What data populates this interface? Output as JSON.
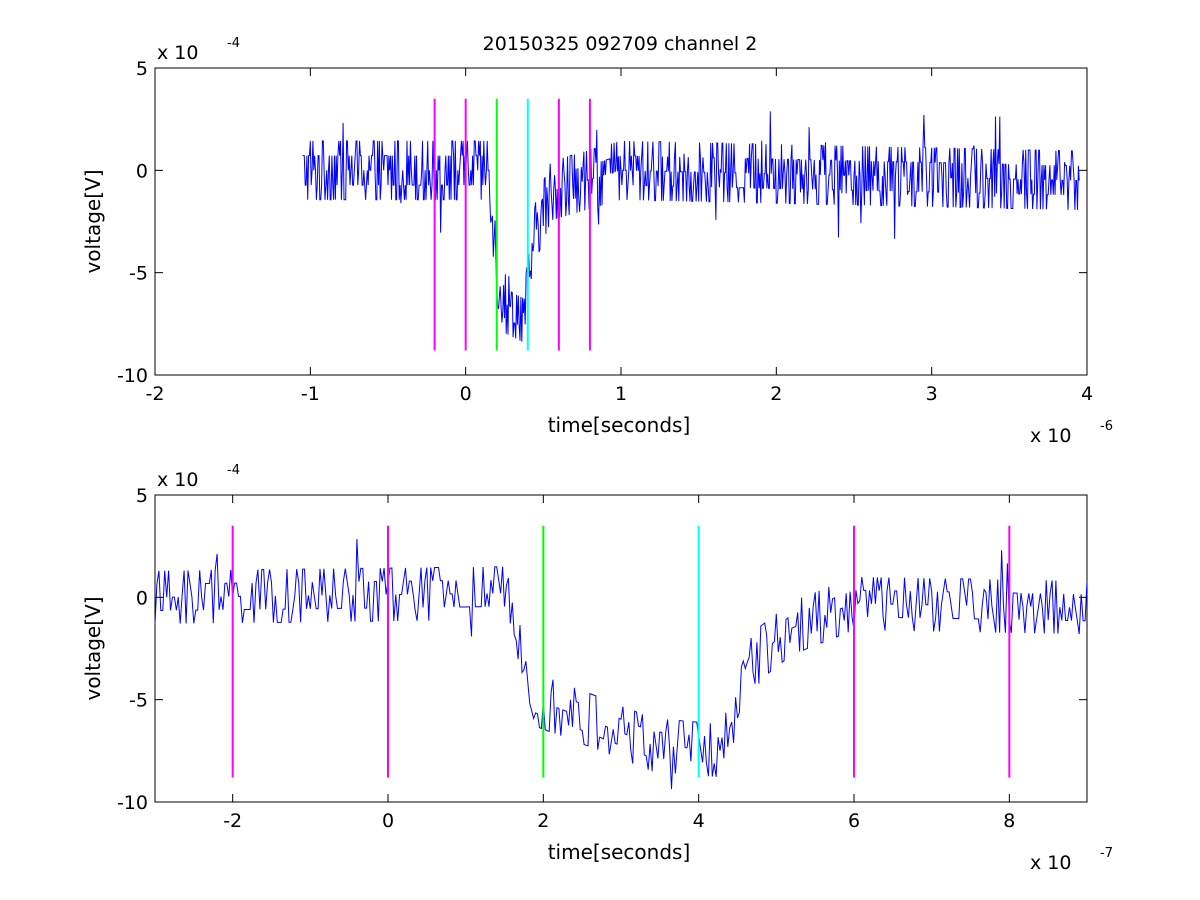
{
  "title": "20150325 092709 channel 2",
  "colors": {
    "signal": "#0000ff",
    "marker_magenta": "#ff00ff",
    "marker_green": "#00ff00",
    "marker_cyan": "#00ffff",
    "axes": "#000000",
    "background": "#ffffff"
  },
  "chart_data": [
    {
      "type": "line",
      "name": "full-view",
      "xlabel": "time[seconds]",
      "ylabel": "voltage[V]",
      "x_multiplier_base": "x 10",
      "x_multiplier_exp": "-6",
      "y_multiplier_base": "x 10",
      "y_multiplier_exp": "-4",
      "xlim": [
        -2,
        4
      ],
      "ylim": [
        -10,
        5
      ],
      "x_ticks": [
        -2,
        -1,
        0,
        1,
        2,
        3,
        4
      ],
      "x_tick_labels": [
        "-2",
        "-1",
        "0",
        "1",
        "2",
        "3",
        "4"
      ],
      "y_ticks": [
        5,
        0,
        -5,
        -10
      ],
      "y_tick_labels": [
        "5",
        "0",
        "-5",
        "-10"
      ],
      "grid": false,
      "signal_range": [
        -1.05,
        3.95
      ],
      "signal_segments": [
        {
          "x": -1.05,
          "y": 0.0,
          "noise": 1.0
        },
        {
          "x": 0.15,
          "y": 0.0,
          "noise": 1.0
        },
        {
          "x": 0.2,
          "y": -5.0,
          "noise": 1.0
        },
        {
          "x": 0.25,
          "y": -6.5,
          "noise": 1.0
        },
        {
          "x": 0.38,
          "y": -7.0,
          "noise": 1.0
        },
        {
          "x": 0.45,
          "y": -3.0,
          "noise": 1.0
        },
        {
          "x": 0.55,
          "y": -1.0,
          "noise": 1.0
        },
        {
          "x": 1.0,
          "y": 0.0,
          "noise": 1.0
        },
        {
          "x": 3.95,
          "y": -0.5,
          "noise": 1.0
        }
      ],
      "markers": [
        {
          "x": -0.2,
          "color": "magenta",
          "y_top": 3.5,
          "y_bottom": -8.8
        },
        {
          "x": 0.0,
          "color": "magenta",
          "y_top": 3.5,
          "y_bottom": -8.8
        },
        {
          "x": 0.2,
          "color": "green",
          "y_top": 3.5,
          "y_bottom": -8.8
        },
        {
          "x": 0.4,
          "color": "cyan",
          "y_top": 3.5,
          "y_bottom": -8.8
        },
        {
          "x": 0.6,
          "color": "magenta",
          "y_top": 3.5,
          "y_bottom": -8.8
        },
        {
          "x": 0.8,
          "color": "magenta",
          "y_top": 3.5,
          "y_bottom": -8.8
        }
      ]
    },
    {
      "type": "line",
      "name": "zoomed-view",
      "xlabel": "time[seconds]",
      "ylabel": "voltage[V]",
      "x_multiplier_base": "x 10",
      "x_multiplier_exp": "-7",
      "y_multiplier_base": "x 10",
      "y_multiplier_exp": "-4",
      "xlim": [
        -3,
        9
      ],
      "ylim": [
        -10,
        5
      ],
      "x_ticks": [
        -2,
        0,
        2,
        4,
        6,
        8
      ],
      "x_tick_labels": [
        "-2",
        "0",
        "2",
        "4",
        "6",
        "8"
      ],
      "y_ticks": [
        5,
        0,
        -5,
        -10
      ],
      "y_tick_labels": [
        "5",
        "0",
        "-5",
        "-10"
      ],
      "grid": false,
      "signal_range": [
        -3,
        9
      ],
      "signal_segments": [
        {
          "x": -3.0,
          "y": 0.0,
          "noise": 0.9
        },
        {
          "x": 1.5,
          "y": 0.2,
          "noise": 0.9
        },
        {
          "x": 1.7,
          "y": -2.0,
          "noise": 0.9
        },
        {
          "x": 1.9,
          "y": -5.0,
          "noise": 0.9
        },
        {
          "x": 2.6,
          "y": -6.0,
          "noise": 0.9
        },
        {
          "x": 3.4,
          "y": -7.2,
          "noise": 0.9
        },
        {
          "x": 4.3,
          "y": -7.5,
          "noise": 0.9
        },
        {
          "x": 4.7,
          "y": -3.0,
          "noise": 0.9
        },
        {
          "x": 5.2,
          "y": -1.5,
          "noise": 0.9
        },
        {
          "x": 6.0,
          "y": -0.3,
          "noise": 0.9
        },
        {
          "x": 9.0,
          "y": -0.5,
          "noise": 0.9
        }
      ],
      "markers": [
        {
          "x": -2,
          "color": "magenta",
          "y_top": 3.5,
          "y_bottom": -8.8
        },
        {
          "x": 0,
          "color": "magenta",
          "y_top": 3.5,
          "y_bottom": -8.8
        },
        {
          "x": 2,
          "color": "green",
          "y_top": 3.5,
          "y_bottom": -8.8
        },
        {
          "x": 4,
          "color": "cyan",
          "y_top": 3.5,
          "y_bottom": -8.8
        },
        {
          "x": 6,
          "color": "magenta",
          "y_top": 3.5,
          "y_bottom": -8.8
        },
        {
          "x": 8,
          "color": "magenta",
          "y_top": 3.5,
          "y_bottom": -8.8
        }
      ]
    }
  ]
}
